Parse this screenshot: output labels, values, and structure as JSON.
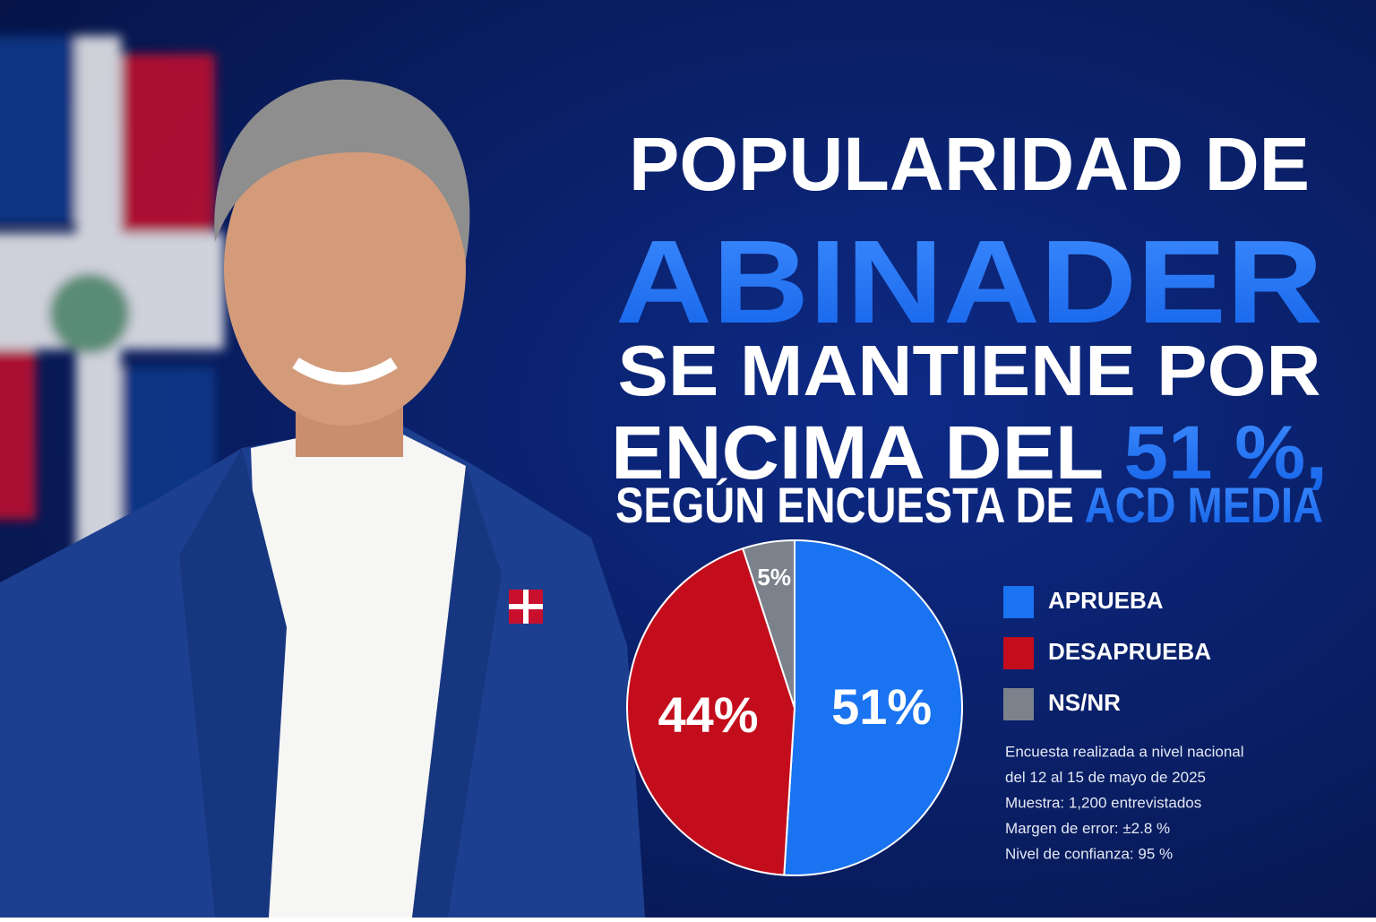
{
  "chart_data": {
    "type": "pie",
    "title_lines": [
      [
        {
          "text": "POPULARIDAD DE",
          "accent": false
        }
      ],
      [
        {
          "text": "ABINADER",
          "accent": true
        }
      ],
      [
        {
          "text": "SE MANTIENE POR",
          "accent": false
        }
      ],
      [
        {
          "text": "ENCIMA DEL",
          "accent": false
        },
        {
          "text": "51 %,",
          "accent": true
        }
      ],
      [
        {
          "text": "SEGÚN ENCUESTA DE",
          "accent": false
        },
        {
          "text": "ACD MEDIA",
          "accent": true
        }
      ]
    ],
    "categories": [
      "APRUEBA",
      "DESAPRUEBA",
      "NS/NR"
    ],
    "values": [
      51,
      44,
      5
    ],
    "value_labels": [
      "51%",
      "44%",
      "5%"
    ],
    "colors": [
      "#1a73f0",
      "#c40d1c",
      "#7b828b"
    ],
    "notes": [
      "Encuesta realizada a nivel nacional",
      "del 12 al 15 de mayo de 2025",
      "Muestra: 1,200 entrevistados",
      "Margen de error: ±2.8 %",
      "Nivel de confianza: 95 %"
    ]
  }
}
